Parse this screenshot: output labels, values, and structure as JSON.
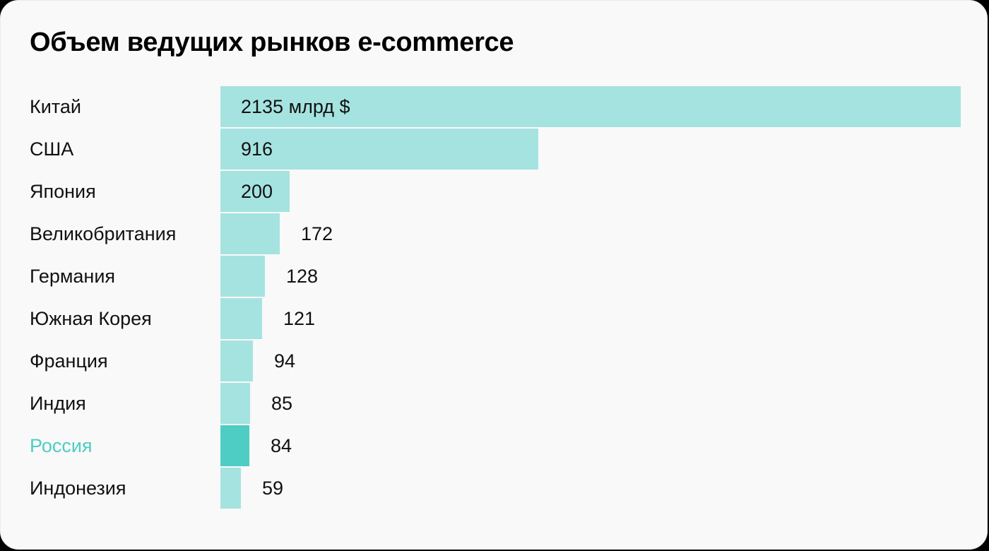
{
  "title": "Объем ведущих рынков e-commerce",
  "colors": {
    "bar": "#a5e3e0",
    "highlight_bar": "#4ecdc4",
    "highlight_label": "#4ecdc4",
    "background": "#f9f9f9"
  },
  "rows": [
    {
      "label": "Китай",
      "value": 2135,
      "display": "2135 млрд $",
      "highlight": false
    },
    {
      "label": "США",
      "value": 916,
      "display": "916",
      "highlight": false
    },
    {
      "label": "Япония",
      "value": 200,
      "display": "200",
      "highlight": false
    },
    {
      "label": "Великобритания",
      "value": 172,
      "display": "172",
      "highlight": false
    },
    {
      "label": "Германия",
      "value": 128,
      "display": "128",
      "highlight": false
    },
    {
      "label": "Южная Корея",
      "value": 121,
      "display": "121",
      "highlight": false
    },
    {
      "label": "Франция",
      "value": 94,
      "display": "94",
      "highlight": false
    },
    {
      "label": "Индия",
      "value": 85,
      "display": "85",
      "highlight": false
    },
    {
      "label": "Россия",
      "value": 84,
      "display": "84",
      "highlight": true
    },
    {
      "label": "Индонезия",
      "value": 59,
      "display": "59",
      "highlight": false
    }
  ],
  "chart_data": {
    "type": "bar",
    "orientation": "horizontal",
    "title": "Объем ведущих рынков e-commerce",
    "categories": [
      "Китай",
      "США",
      "Япония",
      "Великобритания",
      "Германия",
      "Южная Корея",
      "Франция",
      "Индия",
      "Россия",
      "Индонезия"
    ],
    "values": [
      2135,
      916,
      200,
      172,
      128,
      121,
      94,
      85,
      84,
      59
    ],
    "unit": "млрд $",
    "highlighted": "Россия",
    "xlabel": "",
    "ylabel": "",
    "grid": false,
    "legend": null
  }
}
